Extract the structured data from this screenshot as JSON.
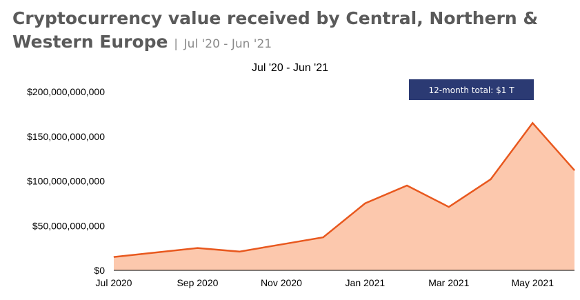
{
  "header": {
    "title": "Cryptocurrency value received by Central, Northern & Western Europe",
    "separator": "|",
    "subtitle": "Jul '20 - Jun '21"
  },
  "colors": {
    "area_fill": "#fcc8ad",
    "line": "#e8581e",
    "badge_bg": "#2b3a73",
    "title": "#5a5a5a"
  },
  "chart_data": {
    "type": "area",
    "title": "Jul '20 - Jun '21",
    "x": [
      "Jul 2020",
      "Aug 2020",
      "Sep 2020",
      "Oct 2020",
      "Nov 2020",
      "Dec 2020",
      "Jan 2021",
      "Feb 2021",
      "Mar 2021",
      "Apr 2021",
      "May 2021",
      "Jun 2021"
    ],
    "values": [
      15000000000,
      20000000000,
      25000000000,
      21000000000,
      29000000000,
      37000000000,
      75000000000,
      95000000000,
      71000000000,
      102000000000,
      165000000000,
      112000000000
    ],
    "ylim": [
      0,
      200000000000
    ],
    "yticks": [
      "$0",
      "$50,000,000,000",
      "$100,000,000,000",
      "$150,000,000,000",
      "$200,000,000,000"
    ],
    "ytick_values": [
      0,
      50000000000,
      100000000000,
      150000000000,
      200000000000
    ],
    "xticks": [
      "Jul 2020",
      "Sep 2020",
      "Nov 2020",
      "Jan 2021",
      "Mar 2021",
      "May 2021"
    ],
    "xtick_indices": [
      0,
      2,
      4,
      6,
      8,
      10
    ],
    "grid": false,
    "annotation": "12-month total: $1 T"
  }
}
